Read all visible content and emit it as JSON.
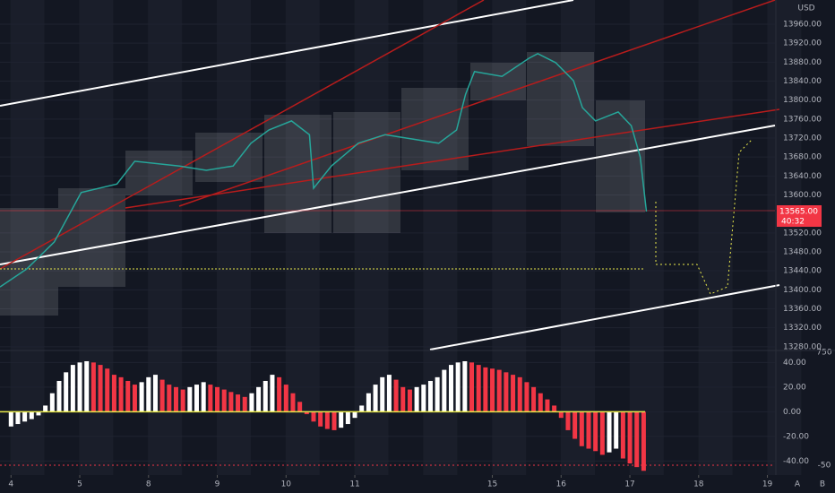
{
  "chart_data": [
    {
      "type": "line",
      "unit": "USD",
      "color": "#26a69a",
      "last_price": {
        "value": 13565,
        "label": "13565.00"
      },
      "countdown": "40:32",
      "x": [
        -0.16,
        0.23,
        0.63,
        1.02,
        1.54,
        1.8,
        2.45,
        2.84,
        3.23,
        3.49,
        3.75,
        4.08,
        4.34,
        4.4,
        4.66,
        5.05,
        5.44,
        5.83,
        6.22,
        6.48,
        6.61,
        6.74,
        7.14,
        7.53,
        7.66,
        7.92,
        8.18,
        8.31,
        8.5,
        8.83,
        9.02,
        9.15,
        9.24
      ],
      "values": [
        13406,
        13444,
        13501,
        13605,
        13623,
        13671,
        13661,
        13652,
        13661,
        13709,
        13737,
        13756,
        13727,
        13614,
        13661,
        13709,
        13727,
        13718,
        13709,
        13737,
        13812,
        13860,
        13850,
        13888,
        13898,
        13879,
        13841,
        13784,
        13756,
        13775,
        13746,
        13680,
        13565
      ],
      "xlim": [
        -0.16,
        11.11
      ],
      "ylim": [
        13274,
        14011
      ],
      "yticks": [
        {
          "value": 13960,
          "label": "13960.00"
        },
        {
          "value": 13920,
          "label": "13920.00"
        },
        {
          "value": 13880,
          "label": "13880.00"
        },
        {
          "value": 13840,
          "label": "13840.00"
        },
        {
          "value": 13800,
          "label": "13800.00"
        },
        {
          "value": 13760,
          "label": "13760.00"
        },
        {
          "value": 13720,
          "label": "13720.00"
        },
        {
          "value": 13680,
          "label": "13680.00"
        },
        {
          "value": 13640,
          "label": "13640.00"
        },
        {
          "value": 13600,
          "label": "13600.00"
        },
        {
          "value": 13520,
          "label": "13520.00"
        },
        {
          "value": 13480,
          "label": "13480.00"
        },
        {
          "value": 13440,
          "label": "13440.00"
        },
        {
          "value": 13400,
          "label": "13400.00"
        },
        {
          "value": 13360,
          "label": "13360.00"
        },
        {
          "value": 13320,
          "label": "13320.00"
        },
        {
          "value": 13280,
          "label": "13280.00"
        }
      ]
    },
    {
      "type": "bar",
      "rising_color": "#ffffff",
      "falling_color": "#f23645",
      "x": [
        0,
        0.1,
        0.2,
        0.3,
        0.4,
        0.5,
        0.6,
        0.7,
        0.8,
        0.9,
        1,
        1.1,
        1.2,
        1.3,
        1.4,
        1.5,
        1.6,
        1.7,
        1.8,
        1.9,
        2,
        2.1,
        2.2,
        2.3,
        2.4,
        2.5,
        2.6,
        2.7,
        2.8,
        2.9,
        3,
        3.1,
        3.2,
        3.3,
        3.4,
        3.5,
        3.6,
        3.7,
        3.8,
        3.9,
        4,
        4.1,
        4.2,
        4.3,
        4.4,
        4.5,
        4.6,
        4.7,
        4.8,
        4.9,
        5,
        5.1,
        5.2,
        5.3,
        5.4,
        5.5,
        5.6,
        5.7,
        5.8,
        5.9,
        6,
        6.1,
        6.2,
        6.3,
        6.4,
        6.5,
        6.6,
        6.7,
        6.8,
        6.9,
        7,
        7.1,
        7.2,
        7.3,
        7.4,
        7.5,
        7.6,
        7.7,
        7.8,
        7.9,
        8,
        8.1,
        8.2,
        8.3,
        8.4,
        8.5,
        8.6,
        8.7,
        8.8,
        8.9,
        9,
        9.1,
        9.2
      ],
      "values": [
        -12,
        -10,
        -8,
        -6,
        -3,
        5,
        15,
        25,
        32,
        38,
        40,
        41,
        40,
        38,
        35,
        30,
        28,
        25,
        22,
        24,
        28,
        30,
        26,
        22,
        20,
        18,
        20,
        22,
        24,
        22,
        20,
        18,
        16,
        14,
        12,
        15,
        20,
        25,
        30,
        28,
        22,
        15,
        8,
        -2,
        -8,
        -12,
        -14,
        -15,
        -13,
        -10,
        -5,
        5,
        15,
        22,
        28,
        30,
        26,
        20,
        18,
        20,
        22,
        25,
        28,
        34,
        38,
        40,
        41,
        40,
        38,
        36,
        35,
        34,
        32,
        30,
        28,
        24,
        20,
        15,
        10,
        5,
        -5,
        -15,
        -22,
        -28,
        -30,
        -32,
        -35,
        -33,
        -30,
        -38,
        -42,
        -45,
        -48
      ],
      "xlim": [
        -0.16,
        11.11
      ],
      "ylim": [
        -50,
        49
      ],
      "yticks": [
        {
          "value": 40,
          "label": "40.00"
        },
        {
          "value": 20,
          "label": "20.00"
        },
        {
          "value": 0,
          "label": "0.00"
        },
        {
          "value": -20,
          "label": "-20.00"
        },
        {
          "value": -40,
          "label": "-40.00"
        }
      ],
      "scale_labels": [
        "750",
        "-50"
      ],
      "xticks": [
        {
          "value": 0,
          "label": "4"
        },
        {
          "value": 1,
          "label": "5"
        },
        {
          "value": 2,
          "label": "8"
        },
        {
          "value": 3,
          "label": "9"
        },
        {
          "value": 4,
          "label": "10"
        },
        {
          "value": 5,
          "label": "11"
        },
        {
          "value": 7,
          "label": "15"
        },
        {
          "value": 8,
          "label": "16"
        },
        {
          "value": 9,
          "label": "17"
        },
        {
          "value": 10,
          "label": "18"
        },
        {
          "value": 11,
          "label": "19"
        }
      ],
      "corner_buttons": [
        "A",
        "B"
      ]
    }
  ]
}
